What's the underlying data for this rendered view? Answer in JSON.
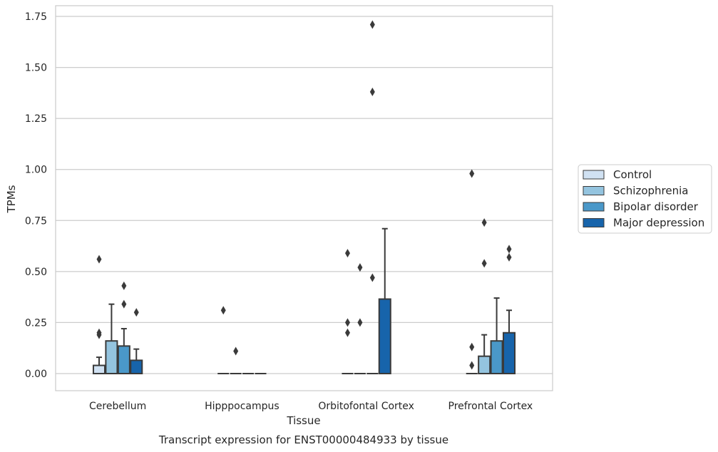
{
  "chart_data": {
    "type": "box",
    "title": "Transcript expression for ENST00000484933 by tissue",
    "xlabel": "Tissue",
    "ylabel": "TPMs",
    "ylim": [
      -0.085,
      1.8
    ],
    "yticks": [
      "0.00",
      "0.25",
      "0.50",
      "0.75",
      "1.00",
      "1.25",
      "1.50",
      "1.75"
    ],
    "grid": true,
    "legend_position": "right",
    "categories": [
      "Cerebellum",
      "Hipppocampus",
      "Orbitofontal Cortex",
      "Prefrontal Cortex"
    ],
    "series": [
      {
        "name": "Control",
        "color": "#d0e1f2",
        "boxes": [
          {
            "q1": 0,
            "median": 0,
            "q3": 0.04,
            "whisker_low": 0,
            "whisker_high": 0.08,
            "outliers": [
              0.19,
              0.2,
              0.56
            ]
          },
          {
            "q1": 0,
            "median": 0,
            "q3": 0,
            "whisker_low": 0,
            "whisker_high": 0,
            "outliers": [
              0.31
            ]
          },
          {
            "q1": 0,
            "median": 0,
            "q3": 0,
            "whisker_low": 0,
            "whisker_high": 0,
            "outliers": [
              0.2,
              0.25,
              0.59
            ]
          },
          {
            "q1": 0,
            "median": 0,
            "q3": 0,
            "whisker_low": 0,
            "whisker_high": 0,
            "outliers": [
              0.04,
              0.13,
              0.98
            ]
          }
        ]
      },
      {
        "name": "Schizophrenia",
        "color": "#94c4df",
        "boxes": [
          {
            "q1": 0,
            "median": 0,
            "q3": 0.16,
            "whisker_low": 0,
            "whisker_high": 0.34,
            "outliers": []
          },
          {
            "q1": 0,
            "median": 0,
            "q3": 0,
            "whisker_low": 0,
            "whisker_high": 0,
            "outliers": [
              0.11
            ]
          },
          {
            "q1": 0,
            "median": 0,
            "q3": 0,
            "whisker_low": 0,
            "whisker_high": 0,
            "outliers": [
              0.25,
              0.52
            ]
          },
          {
            "q1": 0,
            "median": 0,
            "q3": 0.085,
            "whisker_low": 0,
            "whisker_high": 0.19,
            "outliers": [
              0.54,
              0.74
            ]
          }
        ]
      },
      {
        "name": "Bipolar disorder",
        "color": "#4a98c9",
        "boxes": [
          {
            "q1": 0,
            "median": 0,
            "q3": 0.135,
            "whisker_low": 0,
            "whisker_high": 0.22,
            "outliers": [
              0.34,
              0.43
            ]
          },
          {
            "q1": 0,
            "median": 0,
            "q3": 0,
            "whisker_low": 0,
            "whisker_high": 0,
            "outliers": []
          },
          {
            "q1": 0,
            "median": 0,
            "q3": 0,
            "whisker_low": 0,
            "whisker_high": 0,
            "outliers": [
              0.47,
              1.38,
              1.71
            ]
          },
          {
            "q1": 0,
            "median": 0,
            "q3": 0.16,
            "whisker_low": 0,
            "whisker_high": 0.37,
            "outliers": []
          }
        ]
      },
      {
        "name": "Major depression",
        "color": "#1764ab",
        "boxes": [
          {
            "q1": 0,
            "median": 0,
            "q3": 0.065,
            "whisker_low": 0,
            "whisker_high": 0.12,
            "outliers": [
              0.3
            ]
          },
          {
            "q1": 0,
            "median": 0,
            "q3": 0,
            "whisker_low": 0,
            "whisker_high": 0,
            "outliers": []
          },
          {
            "q1": 0,
            "median": 0,
            "q3": 0.365,
            "whisker_low": 0,
            "whisker_high": 0.71,
            "outliers": []
          },
          {
            "q1": 0,
            "median": 0,
            "q3": 0.2,
            "whisker_low": 0,
            "whisker_high": 0.31,
            "outliers": [
              0.57,
              0.61
            ]
          }
        ]
      }
    ]
  }
}
